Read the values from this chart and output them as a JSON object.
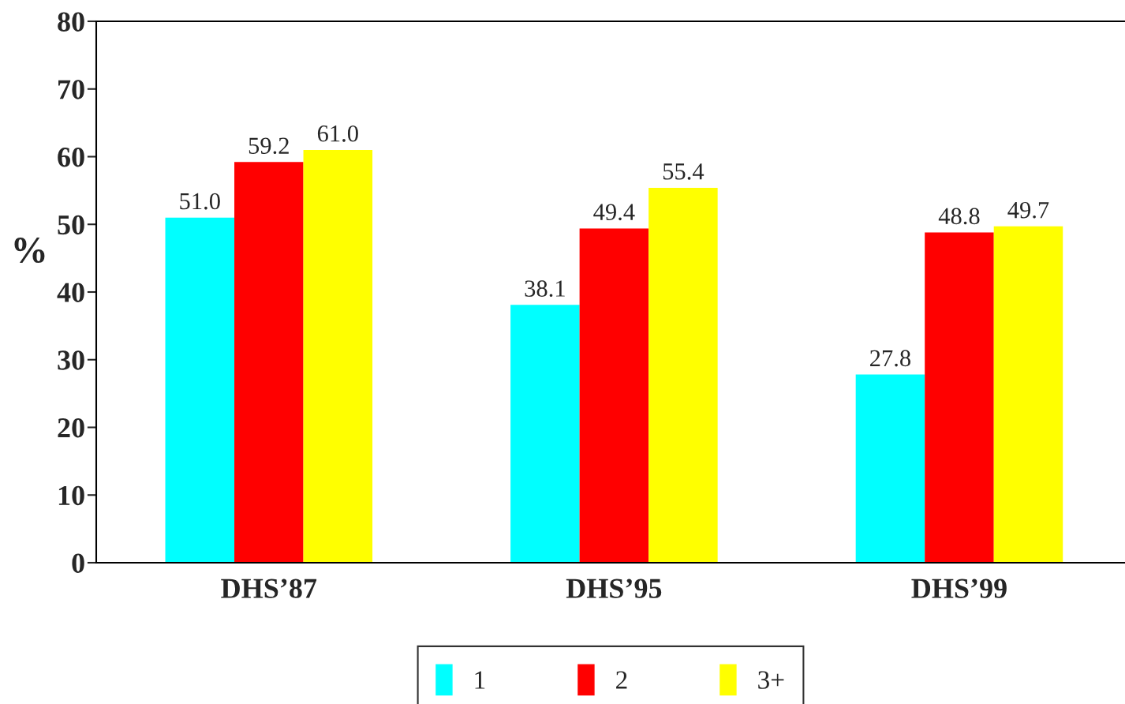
{
  "chart_data": {
    "type": "bar",
    "ylabel": "%",
    "categories": [
      "DHS’87",
      "DHS’95",
      "DHS’99"
    ],
    "series": [
      {
        "name": "1",
        "color": "#00ffff",
        "values": [
          51.0,
          38.1,
          27.8
        ],
        "value_labels": [
          "51.0",
          "38.1",
          "27.8"
        ]
      },
      {
        "name": "2",
        "color": "#ff0000",
        "values": [
          59.2,
          49.4,
          48.8
        ],
        "value_labels": [
          "59.2",
          "49.4",
          "48.8"
        ]
      },
      {
        "name": "3+",
        "color": "#ffff00",
        "values": [
          61.0,
          55.4,
          49.7
        ],
        "value_labels": [
          "61.0",
          "55.4",
          "49.7"
        ]
      }
    ],
    "ylim": [
      0,
      80
    ],
    "yticks": [
      0,
      10,
      20,
      30,
      40,
      50,
      60,
      70,
      80
    ],
    "grid": false,
    "legend": "bottom"
  }
}
